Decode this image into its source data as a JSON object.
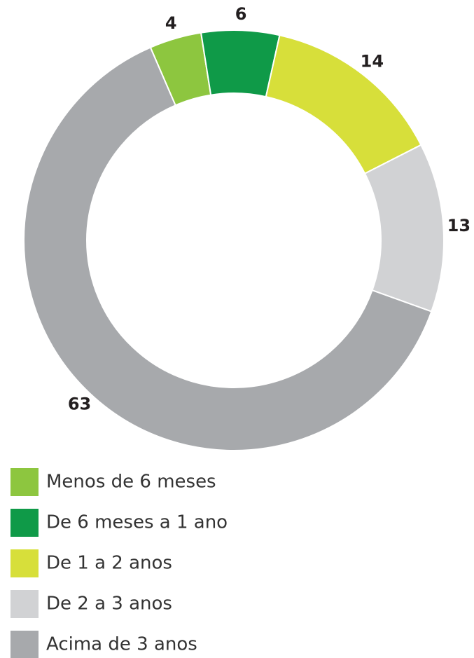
{
  "chart_data": {
    "type": "donut",
    "categories": [
      "Menos de 6 meses",
      "De 6 meses a 1 ano",
      "De 1 a 2 anos",
      "De 2 a 3 anos",
      "Acima de 3 anos"
    ],
    "values": [
      4,
      6,
      14,
      13,
      63
    ],
    "colors": [
      "#8dc63f",
      "#0f9a48",
      "#d7df3a",
      "#d1d2d4",
      "#a7a9ac"
    ],
    "legend": "bottom-left"
  }
}
